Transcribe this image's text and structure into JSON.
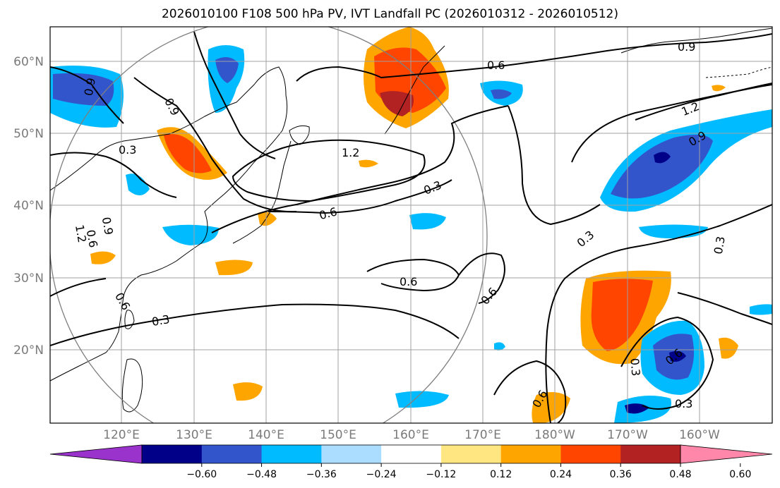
{
  "title": "2026010100 F108 500 hPa PV, IVT Landfall PC (2026010312 - 2026010512)",
  "lat_labels": [
    "60°N",
    "50°N",
    "40°N",
    "30°N",
    "20°N"
  ],
  "lon_labels": [
    "120°E",
    "130°E",
    "140°E",
    "150°E",
    "160°E",
    "170°E",
    "180°W",
    "170°W",
    "160°W"
  ],
  "contour_labels": [
    "0.6",
    "0.9",
    "0.9",
    "0.9",
    "1.2",
    "1.2",
    "0.3",
    "0.3",
    "0.3",
    "0.6",
    "0.6",
    "0.6",
    "0.9",
    "1.2",
    "0.9",
    "0.3",
    "0.3",
    "0.3",
    "0.6",
    "0.6",
    "0.6",
    "0.3",
    "0.6"
  ],
  "colorbar": {
    "ticks": [
      "−0.60",
      "−0.48",
      "−0.36",
      "−0.24",
      "−0.12",
      "0.12",
      "0.24",
      "0.36",
      "0.48",
      "0.60"
    ],
    "colors": [
      "#9933cc",
      "#000088",
      "#3355cc",
      "#00bbff",
      "#aaddff",
      "#ffffff",
      "#ffe680",
      "#ffa500",
      "#ff4500",
      "#b22222",
      "#ff88aa"
    ]
  }
}
